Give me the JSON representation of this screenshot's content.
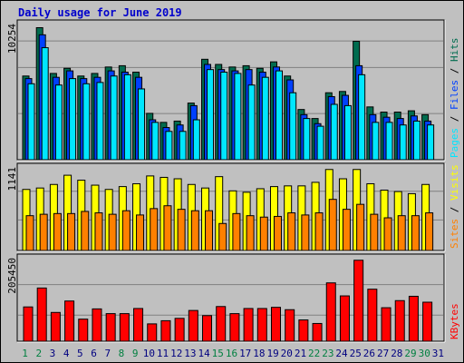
{
  "title": "Daily usage for June 2019",
  "colors": {
    "background": "#c0c0c0",
    "hits": "#006c4f",
    "files": "#0040ff",
    "pages": "#00e6ff",
    "visits": "#ffff00",
    "sites": "#ff8000",
    "kbytes": "#ff0000",
    "title": "#0000cc",
    "weekend_label": "#008040",
    "weekday_label": "#000080"
  },
  "chart_data": [
    {
      "type": "bar",
      "title": "Daily usage for June 2019",
      "panel": "hits-files-pages",
      "ymax_label": "10254",
      "ylim": [
        0,
        10254
      ],
      "legend": [
        "Pages",
        "Files",
        "Hits"
      ],
      "legend_placement": "right",
      "grid": true,
      "categories": [
        "1",
        "2",
        "3",
        "4",
        "5",
        "6",
        "7",
        "8",
        "9",
        "10",
        "11",
        "12",
        "13",
        "14",
        "15",
        "16",
        "17",
        "18",
        "19",
        "20",
        "21",
        "22",
        "23",
        "24",
        "25",
        "26",
        "27",
        "28",
        "29",
        "30",
        "31"
      ],
      "series": [
        {
          "name": "Hits",
          "values": [
            6500,
            10254,
            6700,
            7100,
            6500,
            6700,
            7200,
            7300,
            6800,
            3600,
            2900,
            3000,
            4400,
            7800,
            7400,
            7200,
            7300,
            7100,
            7600,
            6500,
            3900,
            3200,
            5200,
            5300,
            9200,
            4100,
            3700,
            3700,
            3800,
            3500,
            0
          ]
        },
        {
          "name": "Files",
          "values": [
            6300,
            9700,
            6400,
            6900,
            6300,
            6400,
            6900,
            6800,
            6400,
            3100,
            2500,
            2700,
            4200,
            7400,
            7000,
            6900,
            7000,
            6800,
            7200,
            6200,
            3500,
            2800,
            4900,
            5000,
            7300,
            3500,
            3300,
            3200,
            3400,
            3000,
            0
          ]
        },
        {
          "name": "Pages",
          "values": [
            5900,
            8700,
            5800,
            6300,
            5900,
            6000,
            6500,
            6600,
            5500,
            2900,
            2200,
            2200,
            3100,
            7000,
            6800,
            6700,
            5800,
            6400,
            6900,
            5200,
            3200,
            2600,
            4300,
            4200,
            6600,
            2900,
            2900,
            2700,
            3000,
            2700,
            0
          ]
        }
      ]
    },
    {
      "type": "bar",
      "panel": "visits-sites",
      "ymax_label": "1141",
      "ylim": [
        0,
        1141
      ],
      "legend": [
        "Sites",
        "Visits"
      ],
      "legend_placement": "right",
      "grid": true,
      "categories": [
        "1",
        "2",
        "3",
        "4",
        "5",
        "6",
        "7",
        "8",
        "9",
        "10",
        "11",
        "12",
        "13",
        "14",
        "15",
        "16",
        "17",
        "18",
        "19",
        "20",
        "21",
        "22",
        "23",
        "24",
        "25",
        "26",
        "27",
        "28",
        "29",
        "30",
        "31"
      ],
      "series": [
        {
          "name": "Visits",
          "values": [
            860,
            880,
            930,
            1060,
            990,
            920,
            860,
            900,
            940,
            1050,
            1030,
            1010,
            930,
            880,
            1040,
            840,
            820,
            870,
            900,
            910,
            910,
            960,
            1141,
            1010,
            1141,
            940,
            850,
            830,
            800,
            930,
            0
          ]
        },
        {
          "name": "Sites",
          "values": [
            490,
            510,
            520,
            520,
            550,
            530,
            510,
            560,
            500,
            590,
            630,
            580,
            560,
            560,
            380,
            520,
            490,
            470,
            480,
            530,
            500,
            530,
            720,
            580,
            650,
            510,
            460,
            490,
            490,
            530,
            0
          ]
        }
      ]
    },
    {
      "type": "bar",
      "panel": "kbytes",
      "ymax_label": "205450",
      "ylim": [
        0,
        205450
      ],
      "legend": [
        "KBytes"
      ],
      "legend_placement": "right",
      "grid": true,
      "categories": [
        "1",
        "2",
        "3",
        "4",
        "5",
        "6",
        "7",
        "8",
        "9",
        "10",
        "11",
        "12",
        "13",
        "14",
        "15",
        "16",
        "17",
        "18",
        "19",
        "20",
        "21",
        "22",
        "23",
        "24",
        "25",
        "26",
        "27",
        "28",
        "29",
        "30",
        "31"
      ],
      "series": [
        {
          "name": "KBytes",
          "values": [
            87000,
            135000,
            73000,
            102000,
            56000,
            82000,
            70000,
            70000,
            83000,
            44000,
            52000,
            58000,
            78000,
            65000,
            88000,
            70000,
            83000,
            83000,
            86000,
            80000,
            54000,
            45000,
            148000,
            115000,
            205450,
            132000,
            85000,
            103000,
            114000,
            99000,
            0
          ]
        }
      ]
    }
  ],
  "x_labels": [
    {
      "label": "1",
      "weekend": true
    },
    {
      "label": "2",
      "weekend": true
    },
    {
      "label": "3",
      "weekend": false
    },
    {
      "label": "4",
      "weekend": false
    },
    {
      "label": "5",
      "weekend": false
    },
    {
      "label": "6",
      "weekend": false
    },
    {
      "label": "7",
      "weekend": false
    },
    {
      "label": "8",
      "weekend": true
    },
    {
      "label": "9",
      "weekend": true
    },
    {
      "label": "10",
      "weekend": false
    },
    {
      "label": "11",
      "weekend": false
    },
    {
      "label": "12",
      "weekend": false
    },
    {
      "label": "13",
      "weekend": false
    },
    {
      "label": "14",
      "weekend": false
    },
    {
      "label": "15",
      "weekend": true
    },
    {
      "label": "16",
      "weekend": true
    },
    {
      "label": "17",
      "weekend": false
    },
    {
      "label": "18",
      "weekend": false
    },
    {
      "label": "19",
      "weekend": false
    },
    {
      "label": "20",
      "weekend": false
    },
    {
      "label": "21",
      "weekend": false
    },
    {
      "label": "22",
      "weekend": true
    },
    {
      "label": "23",
      "weekend": true
    },
    {
      "label": "24",
      "weekend": false
    },
    {
      "label": "25",
      "weekend": false
    },
    {
      "label": "26",
      "weekend": false
    },
    {
      "label": "27",
      "weekend": false
    },
    {
      "label": "28",
      "weekend": false
    },
    {
      "label": "29",
      "weekend": true
    },
    {
      "label": "30",
      "weekend": true
    },
    {
      "label": "31",
      "weekend": false
    }
  ]
}
